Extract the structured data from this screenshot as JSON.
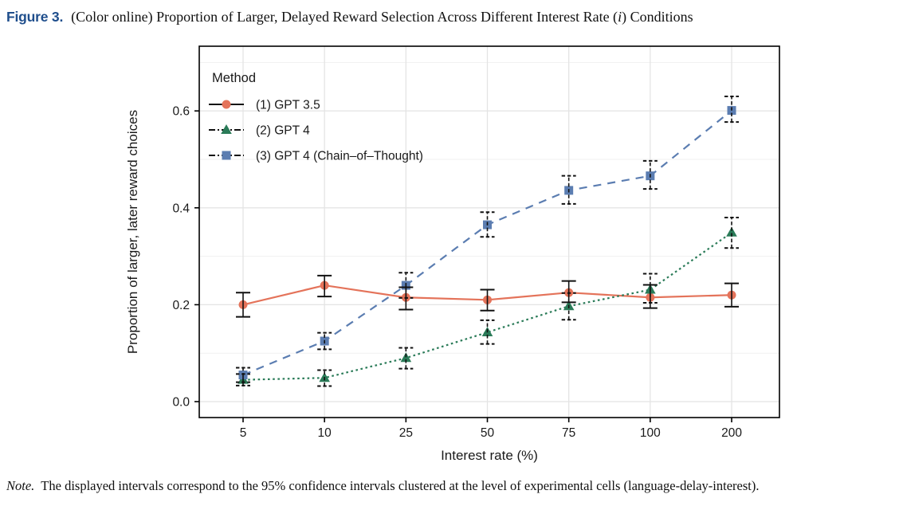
{
  "figure": {
    "label": "Figure 3.",
    "title_pre": "(Color online) Proportion of Larger, Delayed Reward Selection Across Different Interest Rate (",
    "title_i": "i",
    "title_post": ") Conditions"
  },
  "note": {
    "label": "Note.",
    "text": "The displayed intervals correspond to the 95% confidence intervals clustered at the level of experimental cells (language-delay-interest)."
  },
  "colors": {
    "figure_label_blue": "#1F4E8C",
    "gpt35_red": "#E4735A",
    "gpt4_green": "#2A7B58",
    "gpt4cot_blue": "#5B7DB1",
    "error_bar_black": "#111111",
    "grid_major": "#E4E4E4",
    "grid_minor": "#F1F1F1",
    "panel_border": "#000000"
  },
  "chart_data": {
    "type": "line",
    "title": "",
    "xlabel": "Interest rate (%)",
    "ylabel": "Proportion of larger, later reward choices",
    "categories": [
      "5",
      "10",
      "25",
      "50",
      "75",
      "100",
      "200"
    ],
    "y_ticks": [
      0.0,
      0.2,
      0.4,
      0.6
    ],
    "y_tick_labels": [
      "0.0",
      "0.2",
      "0.4",
      "0.6"
    ],
    "y_minor_ticks": [
      0.1,
      0.3,
      0.5,
      0.7
    ],
    "ylim": [
      0,
      0.733
    ],
    "grid": true,
    "legend_position": "inside-top-left",
    "legend_title": "Method",
    "error_bar_note": "95% confidence intervals",
    "series": [
      {
        "name": "(1) GPT 3.5",
        "color": "#E4735A",
        "marker": "circle",
        "linestyle": "solid",
        "errorstyle": "solid",
        "values": [
          0.2,
          0.24,
          0.215,
          0.21,
          0.225,
          0.215,
          0.22
        ],
        "ci_low": [
          0.175,
          0.217,
          0.19,
          0.188,
          0.205,
          0.193,
          0.196
        ],
        "ci_high": [
          0.225,
          0.26,
          0.236,
          0.231,
          0.249,
          0.241,
          0.244
        ]
      },
      {
        "name": "(2) GPT 4",
        "color": "#2A7B58",
        "marker": "triangle",
        "linestyle": "dotted",
        "errorstyle": "dashed",
        "values": [
          0.045,
          0.049,
          0.09,
          0.143,
          0.197,
          0.231,
          0.349
        ],
        "ci_low": [
          0.033,
          0.032,
          0.068,
          0.119,
          0.169,
          0.204,
          0.317
        ],
        "ci_high": [
          0.057,
          0.065,
          0.111,
          0.168,
          0.224,
          0.264,
          0.38
        ]
      },
      {
        "name": "(3) GPT 4 (Chain–of–Thought)",
        "color": "#5B7DB1",
        "marker": "square",
        "linestyle": "dashed",
        "errorstyle": "dashed",
        "values": [
          0.055,
          0.125,
          0.24,
          0.365,
          0.436,
          0.466,
          0.601
        ],
        "ci_low": [
          0.04,
          0.108,
          0.214,
          0.34,
          0.408,
          0.439,
          0.577
        ],
        "ci_high": [
          0.07,
          0.142,
          0.266,
          0.391,
          0.466,
          0.497,
          0.63
        ]
      }
    ]
  }
}
